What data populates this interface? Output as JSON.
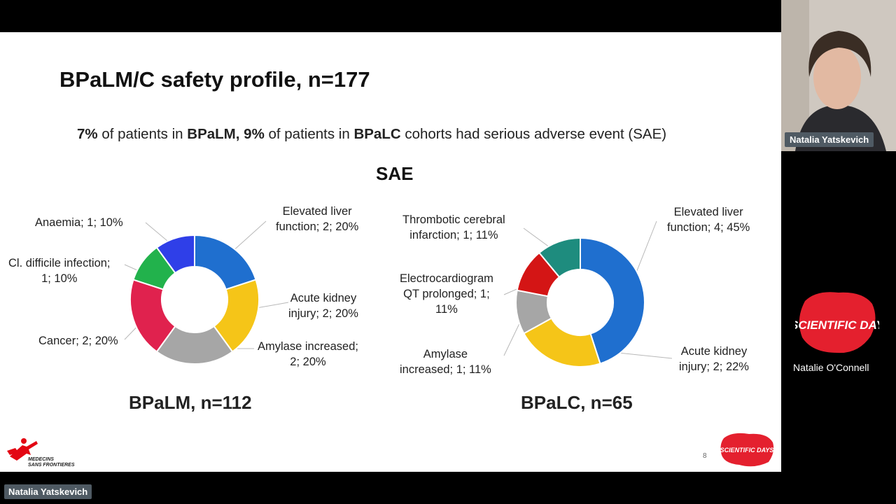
{
  "slide": {
    "title": "BPaLM/C safety profile, n=177",
    "subtitle": {
      "p1": "7%",
      "p2": " of patients in ",
      "p3": "BPaLM,",
      "p4": " 9%",
      "p5": " of patients in ",
      "p6": "BPaLC",
      "p7": " cohorts had serious adverse event (SAE)"
    },
    "sae_heading": "SAE",
    "page_number": "8",
    "msf_logo_text": [
      "MEDECINS",
      "SANS FRONTIERES"
    ]
  },
  "chart_data": [
    {
      "type": "pie",
      "title": "BPaLM, n=112",
      "donut": true,
      "slices": [
        {
          "label": "Elevated liver function; 2; 20%",
          "count": 2,
          "value": 20,
          "color": "#1f6fcf"
        },
        {
          "label": "Acute kidney injury; 2; 20%",
          "count": 2,
          "value": 20,
          "color": "#f5c518"
        },
        {
          "label": "Amylase increased; 2; 20%",
          "count": 2,
          "value": 20,
          "color": "#a6a6a6"
        },
        {
          "label": "Cancer; 2; 20%",
          "count": 2,
          "value": 20,
          "color": "#e0224e"
        },
        {
          "label": "Cl. difficile infection; 1; 10%",
          "count": 1,
          "value": 10,
          "color": "#22b24c"
        },
        {
          "label": "Anaemia; 1; 10%",
          "count": 1,
          "value": 10,
          "color": "#2f3fe8"
        }
      ]
    },
    {
      "type": "pie",
      "title": "BPaLC, n=65",
      "donut": true,
      "slices": [
        {
          "label": "Elevated liver function; 4; 45%",
          "count": 4,
          "value": 45,
          "color": "#1f6fcf"
        },
        {
          "label": "Acute kidney injury; 2; 22%",
          "count": 2,
          "value": 22,
          "color": "#f5c518"
        },
        {
          "label": "Amylase increased; 1; 11%",
          "count": 1,
          "value": 11,
          "color": "#a6a6a6"
        },
        {
          "label": "Electrocardiogram QT prolonged; 1; 11%",
          "count": 1,
          "value": 11,
          "color": "#d41515"
        },
        {
          "label": "Thrombotic cerebral infarction; 1; 11%",
          "count": 1,
          "value": 11,
          "color": "#1e8c7e"
        }
      ]
    }
  ],
  "labels": {
    "left": {
      "anaemia": "Anaemia; 1; 10%",
      "liver": [
        "Elevated liver",
        "function; 2; 20%"
      ],
      "cdiff": [
        "Cl. difficile infection;",
        "1; 10%"
      ],
      "kidney": [
        "Acute kidney",
        "injury; 2; 20%"
      ],
      "cancer": "Cancer; 2; 20%",
      "amylase": [
        "Amylase increased;",
        "2; 20%"
      ]
    },
    "right": {
      "thrombotic": [
        "Thrombotic cerebral",
        "infarction; 1; 11%"
      ],
      "liver": [
        "Elevated liver",
        "function; 4; 45%"
      ],
      "ecg": [
        "Electrocardiogram",
        "QT prolonged; 1;",
        "11%"
      ],
      "amylase": [
        "Amylase",
        "increased; 1; 11%"
      ],
      "kidney": [
        "Acute kidney",
        "injury; 2; 22%"
      ]
    }
  },
  "meeting": {
    "speaker_tag": "Natalia Yatskevich",
    "bottom_tag": "Natalia Yatskevich",
    "participant_name": "Natalie O'Connell",
    "event_logo_text": "SCIENTIFIC DAY",
    "event_logo_small": "SCIENTIFIC DAYS"
  }
}
